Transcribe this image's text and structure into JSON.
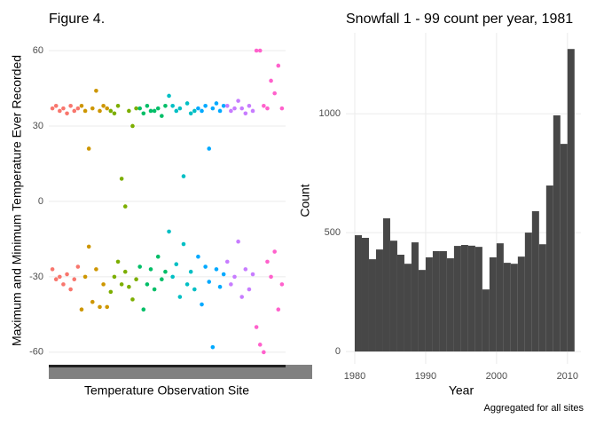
{
  "chart_data": [
    {
      "type": "scatter",
      "title": "Figure 4.",
      "xlabel": "Temperature Observation Site",
      "ylabel": "Maximum and Minimum Temperature Ever Recorded",
      "xlim": [
        0,
        65
      ],
      "ylim": [
        -65,
        66
      ],
      "yticks": [
        -60,
        -30,
        0,
        30,
        60
      ],
      "grid": true,
      "series": [
        {
          "color": "#f8766d",
          "x": [
            1,
            2,
            3,
            4,
            5,
            6,
            7,
            8,
            1,
            2,
            3,
            4,
            5,
            6,
            7,
            8
          ],
          "values": [
            37,
            38,
            36,
            37,
            35,
            38,
            36,
            37,
            -27,
            -31,
            -30,
            -33,
            -29,
            -35,
            -31,
            -26
          ]
        },
        {
          "color": "#cd9600",
          "x": [
            9,
            10,
            11,
            12,
            13,
            14,
            15,
            16,
            9,
            10,
            11,
            12,
            13,
            14,
            15,
            16
          ],
          "values": [
            38,
            36,
            21,
            37,
            44,
            36,
            38,
            37,
            -43,
            -30,
            -18,
            -40,
            -27,
            -42,
            -33,
            -42
          ]
        },
        {
          "color": "#7cae00",
          "x": [
            17,
            18,
            19,
            20,
            21,
            22,
            23,
            24,
            17,
            18,
            19,
            20,
            21,
            22,
            23,
            24
          ],
          "values": [
            36,
            35,
            38,
            9,
            -2,
            36,
            30,
            37,
            -36,
            -30,
            -24,
            -33,
            -28,
            -34,
            -39,
            -31
          ]
        },
        {
          "color": "#00be67",
          "x": [
            25,
            26,
            27,
            28,
            29,
            30,
            31,
            32,
            25,
            26,
            27,
            28,
            29,
            30,
            31,
            32
          ],
          "values": [
            37,
            35,
            38,
            36,
            36,
            37,
            34,
            38,
            -26,
            -43,
            -33,
            -27,
            -35,
            -22,
            -31,
            -28
          ]
        },
        {
          "color": "#00bfc4",
          "x": [
            33,
            34,
            35,
            36,
            37,
            38,
            39,
            40,
            33,
            34,
            35,
            36,
            37,
            38,
            39,
            40
          ],
          "values": [
            42,
            38,
            36,
            37,
            10,
            39,
            35,
            36,
            -12,
            -30,
            -25,
            -38,
            -17,
            -33,
            -28,
            -35
          ]
        },
        {
          "color": "#00a9ff",
          "x": [
            41,
            42,
            43,
            44,
            45,
            46,
            47,
            48,
            41,
            42,
            43,
            44,
            45,
            46,
            47,
            48
          ],
          "values": [
            37,
            36,
            38,
            21,
            37,
            39,
            36,
            38,
            -22,
            -41,
            -26,
            -32,
            -58,
            -27,
            -34,
            -29
          ]
        },
        {
          "color": "#c77cff",
          "x": [
            49,
            50,
            51,
            52,
            53,
            54,
            55,
            56,
            49,
            50,
            51,
            52,
            53,
            54,
            55,
            56
          ],
          "values": [
            38,
            36,
            37,
            40,
            37,
            35,
            38,
            36,
            -24,
            -33,
            -30,
            -16,
            -38,
            -27,
            -35,
            -29
          ]
        },
        {
          "color": "#ff61cc",
          "x": [
            57,
            58,
            59,
            60,
            61,
            62,
            63,
            64,
            57,
            58,
            59,
            60,
            61,
            62,
            63,
            64
          ],
          "values": [
            60,
            60,
            38,
            37,
            48,
            43,
            54,
            37,
            -50,
            -57,
            -60,
            -24,
            -30,
            -20,
            -43,
            -33
          ]
        }
      ]
    },
    {
      "type": "histogram",
      "title": "Snowfall 1 - 99 count per year, 1981",
      "xlabel": "Year",
      "ylabel": "Count",
      "caption": "Aggregated for all sites",
      "color": "#474747",
      "xlim": [
        1978.75,
        2011.9
      ],
      "ylim": [
        -52,
        1340
      ],
      "xticks": [
        1980,
        1990,
        2000,
        2010
      ],
      "yticks": [
        0,
        500,
        1000
      ],
      "grid": true,
      "bins": [
        1980,
        1981,
        1982,
        1983,
        1984,
        1985,
        1986,
        1987,
        1988,
        1989,
        1990,
        1991,
        1992,
        1993,
        1994,
        1995,
        1996,
        1997,
        1998,
        1999,
        2000,
        2001,
        2002,
        2003,
        2004,
        2005,
        2006,
        2007,
        2008,
        2009,
        2010,
        2011
      ],
      "counts": [
        489,
        478,
        388,
        429,
        560,
        466,
        407,
        369,
        459,
        343,
        396,
        422,
        422,
        392,
        444,
        448,
        445,
        440,
        261,
        396,
        455,
        373,
        369,
        399,
        500,
        590,
        451,
        698,
        993,
        873,
        1272
      ]
    }
  ]
}
